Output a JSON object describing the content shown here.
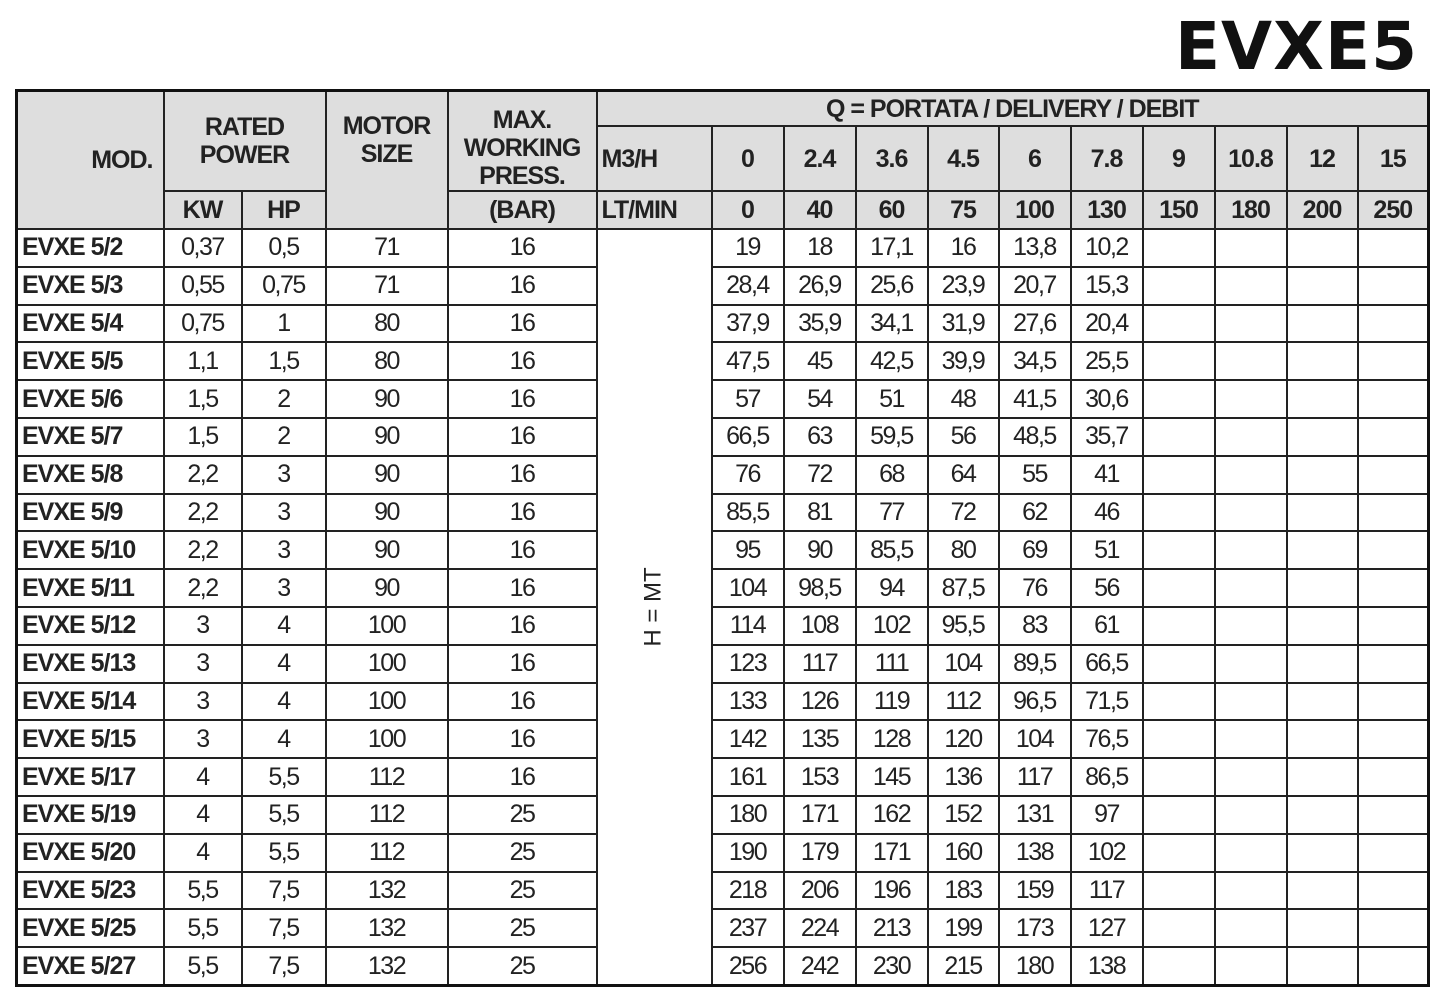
{
  "title": "EVXE5",
  "headers": {
    "mod": "MOD.",
    "rated_power": "RATED POWER",
    "kw": "KW",
    "hp": "HP",
    "motor_size": "MOTOR SIZE",
    "max_press": "MAX. WORKING PRESS.",
    "bar": "(BAR)",
    "q": "Q = PORTATA / DELIVERY / DEBIT",
    "m3h": "M3/H",
    "ltmin": "LT/MIN",
    "hmt": "H = MT",
    "m3h_values": [
      "0",
      "2.4",
      "3.6",
      "4.5",
      "6",
      "7.8",
      "9",
      "10.8",
      "12",
      "15"
    ],
    "ltmin_values": [
      "0",
      "40",
      "60",
      "75",
      "100",
      "130",
      "150",
      "180",
      "200",
      "250"
    ]
  },
  "rows": [
    {
      "model": "EVXE 5/2",
      "kw": "0,37",
      "hp": "0,5",
      "motor": "71",
      "press": "16",
      "h": [
        "19",
        "18",
        "17,1",
        "16",
        "13,8",
        "10,2"
      ]
    },
    {
      "model": "EVXE 5/3",
      "kw": "0,55",
      "hp": "0,75",
      "motor": "71",
      "press": "16",
      "h": [
        "28,4",
        "26,9",
        "25,6",
        "23,9",
        "20,7",
        "15,3"
      ]
    },
    {
      "model": "EVXE 5/4",
      "kw": "0,75",
      "hp": "1",
      "motor": "80",
      "press": "16",
      "h": [
        "37,9",
        "35,9",
        "34,1",
        "31,9",
        "27,6",
        "20,4"
      ]
    },
    {
      "model": "EVXE 5/5",
      "kw": "1,1",
      "hp": "1,5",
      "motor": "80",
      "press": "16",
      "h": [
        "47,5",
        "45",
        "42,5",
        "39,9",
        "34,5",
        "25,5"
      ]
    },
    {
      "model": "EVXE 5/6",
      "kw": "1,5",
      "hp": "2",
      "motor": "90",
      "press": "16",
      "h": [
        "57",
        "54",
        "51",
        "48",
        "41,5",
        "30,6"
      ]
    },
    {
      "model": "EVXE 5/7",
      "kw": "1,5",
      "hp": "2",
      "motor": "90",
      "press": "16",
      "h": [
        "66,5",
        "63",
        "59,5",
        "56",
        "48,5",
        "35,7"
      ]
    },
    {
      "model": "EVXE 5/8",
      "kw": "2,2",
      "hp": "3",
      "motor": "90",
      "press": "16",
      "h": [
        "76",
        "72",
        "68",
        "64",
        "55",
        "41"
      ]
    },
    {
      "model": "EVXE 5/9",
      "kw": "2,2",
      "hp": "3",
      "motor": "90",
      "press": "16",
      "h": [
        "85,5",
        "81",
        "77",
        "72",
        "62",
        "46"
      ]
    },
    {
      "model": "EVXE 5/10",
      "kw": "2,2",
      "hp": "3",
      "motor": "90",
      "press": "16",
      "h": [
        "95",
        "90",
        "85,5",
        "80",
        "69",
        "51"
      ]
    },
    {
      "model": "EVXE 5/11",
      "kw": "2,2",
      "hp": "3",
      "motor": "90",
      "press": "16",
      "h": [
        "104",
        "98,5",
        "94",
        "87,5",
        "76",
        "56"
      ]
    },
    {
      "model": "EVXE 5/12",
      "kw": "3",
      "hp": "4",
      "motor": "100",
      "press": "16",
      "h": [
        "114",
        "108",
        "102",
        "95,5",
        "83",
        "61"
      ]
    },
    {
      "model": "EVXE 5/13",
      "kw": "3",
      "hp": "4",
      "motor": "100",
      "press": "16",
      "h": [
        "123",
        "117",
        "111",
        "104",
        "89,5",
        "66,5"
      ]
    },
    {
      "model": "EVXE 5/14",
      "kw": "3",
      "hp": "4",
      "motor": "100",
      "press": "16",
      "h": [
        "133",
        "126",
        "119",
        "112",
        "96,5",
        "71,5"
      ]
    },
    {
      "model": "EVXE 5/15",
      "kw": "3",
      "hp": "4",
      "motor": "100",
      "press": "16",
      "h": [
        "142",
        "135",
        "128",
        "120",
        "104",
        "76,5"
      ]
    },
    {
      "model": "EVXE 5/17",
      "kw": "4",
      "hp": "5,5",
      "motor": "112",
      "press": "16",
      "h": [
        "161",
        "153",
        "145",
        "136",
        "117",
        "86,5"
      ]
    },
    {
      "model": "EVXE 5/19",
      "kw": "4",
      "hp": "5,5",
      "motor": "112",
      "press": "25",
      "h": [
        "180",
        "171",
        "162",
        "152",
        "131",
        "97"
      ]
    },
    {
      "model": "EVXE 5/20",
      "kw": "4",
      "hp": "5,5",
      "motor": "112",
      "press": "25",
      "h": [
        "190",
        "179",
        "171",
        "160",
        "138",
        "102"
      ]
    },
    {
      "model": "EVXE 5/23",
      "kw": "5,5",
      "hp": "7,5",
      "motor": "132",
      "press": "25",
      "h": [
        "218",
        "206",
        "196",
        "183",
        "159",
        "117"
      ]
    },
    {
      "model": "EVXE 5/25",
      "kw": "5,5",
      "hp": "7,5",
      "motor": "132",
      "press": "25",
      "h": [
        "237",
        "224",
        "213",
        "199",
        "173",
        "127"
      ]
    },
    {
      "model": "EVXE 5/27",
      "kw": "5,5",
      "hp": "7,5",
      "motor": "132",
      "press": "25",
      "h": [
        "256",
        "242",
        "230",
        "215",
        "180",
        "138"
      ]
    }
  ]
}
